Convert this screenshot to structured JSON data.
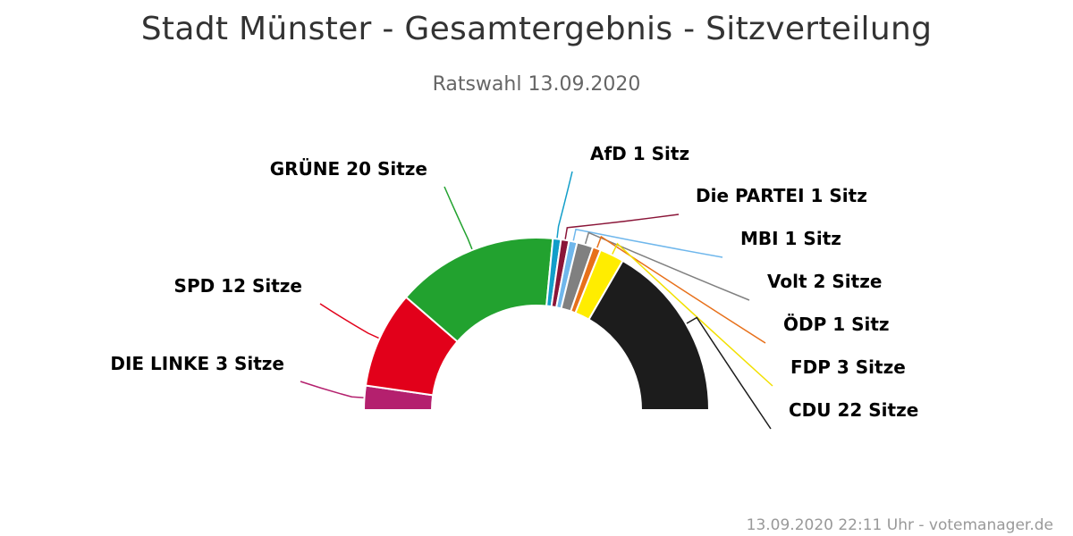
{
  "chart_data": {
    "type": "pie",
    "variant": "semicircle-donut",
    "title": "Stadt Münster - Gesamtergebnis - Sitzverteilung",
    "subtitle": "Ratswahl 13.09.2020",
    "credits": "13.09.2020 22:11 Uhr - votemanager.de",
    "series": [
      {
        "name": "DIE LINKE",
        "value": 3,
        "label": "DIE LINKE 3 Sitze",
        "color": "#b4206e"
      },
      {
        "name": "SPD",
        "value": 12,
        "label": "SPD 12 Sitze",
        "color": "#e2001a"
      },
      {
        "name": "GRÜNE",
        "value": 20,
        "label": "GRÜNE 20 Sitze",
        "color": "#22a22f"
      },
      {
        "name": "AfD",
        "value": 1,
        "label": "AfD 1 Sitz",
        "color": "#129ec9"
      },
      {
        "name": "Die PARTEI",
        "value": 1,
        "label": "Die PARTEI 1 Sitz",
        "color": "#8a1538"
      },
      {
        "name": "MBI",
        "value": 1,
        "label": "MBI 1 Sitz",
        "color": "#6fb7ec"
      },
      {
        "name": "Volt",
        "value": 2,
        "label": "Volt 2 Sitze",
        "color": "#808080"
      },
      {
        "name": "ÖDP",
        "value": 1,
        "label": "ÖDP 1 Sitz",
        "color": "#e7701a"
      },
      {
        "name": "FDP",
        "value": 3,
        "label": "FDP 3 Sitze",
        "color": "#ffed00"
      },
      {
        "name": "CDU",
        "value": 22,
        "label": "CDU 22 Sitze",
        "color": "#1c1c1c"
      }
    ]
  }
}
